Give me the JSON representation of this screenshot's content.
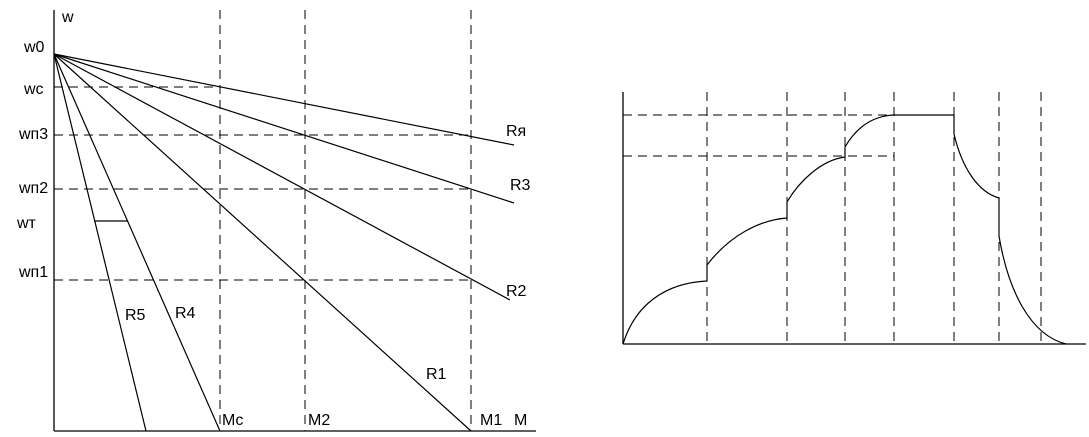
{
  "left_diagram": {
    "axis_labels": {
      "y": "w",
      "x": "M"
    },
    "speed_levels": {
      "w0": "w0",
      "wc": "wc",
      "wp3": "wп3",
      "wp2": "wп2",
      "wt": "wт",
      "wp1": "wп1"
    },
    "torque_marks": {
      "mc": "Mc",
      "m2": "M2",
      "m1": "M1"
    },
    "resistance_curves": {
      "r_ya": "Rя",
      "r3": "R3",
      "r2": "R2",
      "r1": "R1",
      "r4": "R4",
      "r5": "R5"
    }
  },
  "right_diagram": {
    "description_label": ""
  }
}
